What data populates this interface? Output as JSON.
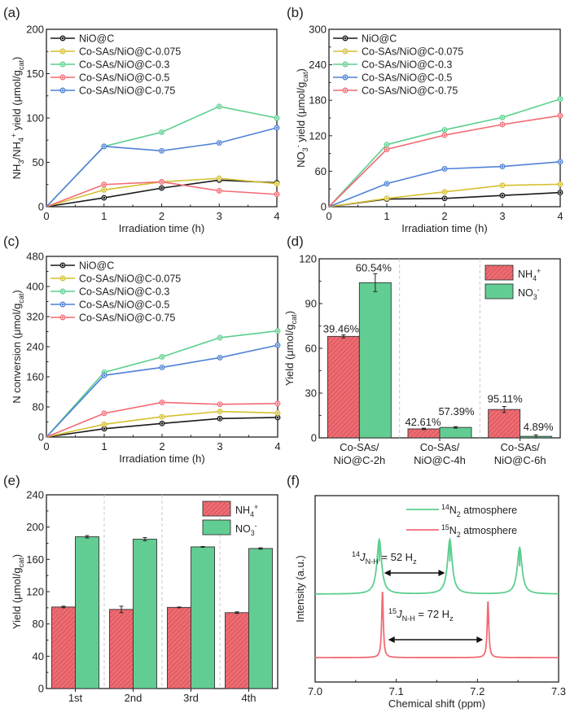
{
  "colors": {
    "black": "#1a1a1a",
    "yellow": "#d4c030",
    "green": "#5ccf8f",
    "red": "#f26b74",
    "blue": "#4f80d6",
    "bar_red": "#ef6b72",
    "bar_green": "#62cd92"
  },
  "chart_data": [
    {
      "id": "a",
      "panel_label": "(a)",
      "type": "line",
      "title": "",
      "xlabel": "Irradiation time (h)",
      "ylabel_parts": [
        "NH",
        "3",
        "/NH",
        "4",
        "+",
        " yield (μmol/g",
        "cat",
        ")"
      ],
      "ylabel": "NH3/NH4+ yield (μmol/gcat)",
      "x": [
        0,
        1,
        2,
        3,
        4
      ],
      "xlim": [
        0,
        4
      ],
      "ylim": [
        0,
        200
      ],
      "xticks": [
        "0",
        "1",
        "2",
        "3",
        "4"
      ],
      "yticks": [
        0,
        50,
        100,
        150,
        200
      ],
      "legend_position": "top-left",
      "series": [
        {
          "name": "NiO@C",
          "color_key": "black",
          "values": [
            0,
            10,
            21,
            30,
            27
          ]
        },
        {
          "name": "Co-SAs/NiO@C-0.075",
          "color_key": "yellow",
          "values": [
            0,
            19,
            28,
            32,
            26
          ]
        },
        {
          "name": "Co-SAs/NiO@C-0.3",
          "color_key": "green",
          "values": [
            0,
            68,
            84,
            113,
            100
          ]
        },
        {
          "name": "Co-SAs/NiO@C-0.5",
          "color_key": "red",
          "values": [
            0,
            25,
            28,
            18,
            14
          ]
        },
        {
          "name": "Co-SAs/NiO@C-0.75",
          "color_key": "blue",
          "values": [
            0,
            68,
            63,
            72,
            89
          ]
        }
      ]
    },
    {
      "id": "b",
      "panel_label": "(b)",
      "type": "line",
      "title": "",
      "xlabel": "Irradiation time (h)",
      "ylabel_parts": [
        "NO",
        "3",
        "-",
        " yield (μmol/g",
        "cat",
        ")"
      ],
      "ylabel": "NO3- yield (μmol/gcat)",
      "x": [
        0,
        1,
        2,
        3,
        4
      ],
      "xlim": [
        0,
        4
      ],
      "ylim": [
        0,
        300
      ],
      "xticks": [
        "0",
        "1",
        "2",
        "3",
        "4"
      ],
      "yticks": [
        0,
        60,
        120,
        180,
        240,
        300
      ],
      "legend_position": "top-left",
      "series": [
        {
          "name": "NiO@C",
          "color_key": "black",
          "values": [
            0,
            13,
            14,
            19,
            24
          ]
        },
        {
          "name": "Co-SAs/NiO@C-0.075",
          "color_key": "yellow",
          "values": [
            0,
            14,
            25,
            36,
            38
          ]
        },
        {
          "name": "Co-SAs/NiO@C-0.3",
          "color_key": "green",
          "values": [
            0,
            105,
            130,
            151,
            182
          ]
        },
        {
          "name": "Co-SAs/NiO@C-0.5",
          "color_key": "blue",
          "values": [
            0,
            39,
            64,
            68,
            76
          ]
        },
        {
          "name": "Co-SAs/NiO@C-0.75",
          "color_key": "red",
          "values": [
            0,
            97,
            121,
            139,
            154
          ]
        }
      ]
    },
    {
      "id": "c",
      "panel_label": "(c)",
      "type": "line",
      "title": "",
      "xlabel": "Irradiation time (h)",
      "ylabel_parts": [
        "N conversion (μmol/g",
        "cat",
        ")"
      ],
      "ylabel": "N conversion (μmol/gcat)",
      "x": [
        0,
        1,
        2,
        3,
        4
      ],
      "xlim": [
        0,
        4
      ],
      "ylim": [
        0,
        480
      ],
      "xticks": [
        "0",
        "1",
        "2",
        "3",
        "4"
      ],
      "yticks": [
        0,
        80,
        160,
        240,
        320,
        400,
        480
      ],
      "legend_position": "top-left",
      "series": [
        {
          "name": "NiO@C",
          "color_key": "black",
          "values": [
            0,
            22,
            36,
            49,
            52
          ]
        },
        {
          "name": "Co-SAs/NiO@C-0.075",
          "color_key": "yellow",
          "values": [
            0,
            34,
            54,
            68,
            64
          ]
        },
        {
          "name": "Co-SAs/NiO@C-0.3",
          "color_key": "green",
          "values": [
            0,
            172,
            213,
            264,
            282
          ]
        },
        {
          "name": "Co-SAs/NiO@C-0.5",
          "color_key": "blue",
          "values": [
            0,
            164,
            185,
            211,
            244
          ]
        },
        {
          "name": "Co-SAs/NiO@C-0.75",
          "color_key": "red",
          "values": [
            0,
            63,
            92,
            87,
            89
          ]
        }
      ]
    },
    {
      "id": "d",
      "panel_label": "(d)",
      "type": "bar",
      "title": "",
      "xlabel": "",
      "ylabel_parts": [
        "Yield (μmol/g",
        "cat",
        ")"
      ],
      "ylabel": "Yield (μmol/gcat)",
      "categories": [
        [
          "Co-SAs/",
          "NiO@C-2h"
        ],
        [
          "Co-SAs/",
          "NiO@C-4h"
        ],
        [
          "Co-SAs/",
          "NiO@C-6h"
        ]
      ],
      "ylim": [
        0,
        120
      ],
      "yticks": [
        0,
        30,
        60,
        90,
        120
      ],
      "legend_position": "top-right",
      "series": [
        {
          "name": "NH4+",
          "name_parts": [
            "NH",
            "4",
            "+"
          ],
          "color_key": "bar_red",
          "hatched": true,
          "values": [
            68,
            6,
            19
          ],
          "errors": [
            1,
            0.5,
            2
          ],
          "labels": [
            "39.46%",
            "42.61%",
            "95.11%"
          ]
        },
        {
          "name": "NO3-",
          "name_parts": [
            "NO",
            "3",
            "-"
          ],
          "color_key": "bar_green",
          "hatched": false,
          "values": [
            104,
            7,
            1
          ],
          "errors": [
            6,
            0.5,
            1
          ],
          "labels": [
            "60.54%",
            "57.39%",
            "4.89%"
          ]
        }
      ]
    },
    {
      "id": "e",
      "panel_label": "(e)",
      "type": "bar",
      "title": "",
      "xlabel": "",
      "ylabel_parts": [
        "Yield (μmol/g",
        "cat",
        ")"
      ],
      "ylabel": "Yield (μmol/gcat)",
      "categories": [
        [
          "1st"
        ],
        [
          "2nd"
        ],
        [
          "3rd"
        ],
        [
          "4th"
        ]
      ],
      "ylim": [
        0,
        240
      ],
      "yticks": [
        0,
        40,
        80,
        120,
        160,
        200,
        240
      ],
      "legend_position": "top-right",
      "series": [
        {
          "name": "NH4+",
          "name_parts": [
            "NH",
            "4",
            "+"
          ],
          "color_key": "bar_red",
          "hatched": true,
          "values": [
            101,
            98,
            100.5,
            94
          ],
          "errors": [
            1,
            4,
            0.5,
            1
          ],
          "labels": []
        },
        {
          "name": "NO3-",
          "name_parts": [
            "NO",
            "3",
            "-"
          ],
          "color_key": "bar_green",
          "hatched": false,
          "values": [
            188,
            185,
            175.5,
            173.5
          ],
          "errors": [
            1.5,
            2,
            0.5,
            0.8
          ],
          "labels": []
        }
      ]
    },
    {
      "id": "f",
      "panel_label": "(f)",
      "type": "line",
      "title": "",
      "xlabel": "Chemical shift (ppm)",
      "ylabel": "Intensity (a.u.)",
      "ylabel_parts": [
        "Intensity (a.u.)"
      ],
      "xlim": [
        7.0,
        7.3
      ],
      "xticks": [
        "7.0",
        "7.1",
        "7.2",
        "7.3"
      ],
      "xtick_values": [
        7.0,
        7.1,
        7.2,
        7.3
      ],
      "legend_position": "top-right",
      "series": [
        {
          "name": "14N2 atmosphere",
          "name_parts": [
            "14",
            "N",
            "2",
            " atmosphere"
          ],
          "color_key": "green",
          "peaks_ppm": [
            7.079,
            7.166,
            7.252
          ],
          "peak_heights": [
            0.47,
            0.47,
            0.4
          ],
          "peak_width_ppm": 0.0035,
          "baseline": 0.47
        },
        {
          "name": "15N2 atmosphere",
          "name_parts": [
            "15",
            "N",
            "2",
            " atmosphere"
          ],
          "color_key": "red",
          "peaks_ppm": [
            7.083,
            7.213
          ],
          "peak_heights": [
            0.55,
            0.47
          ],
          "peak_width_ppm": 0.0012,
          "baseline": 0.0
        }
      ],
      "annotations": [
        {
          "id": "j14",
          "parts": [
            "14",
            "J",
            "N-H",
            " = 52 H",
            "z"
          ],
          "text": "14J N-H = 52 Hz",
          "arrow_ppm": [
            7.085,
            7.16
          ]
        },
        {
          "id": "j15",
          "parts": [
            "15",
            "J",
            "N-H",
            " = 72 H",
            "z"
          ],
          "text": "15J N-H = 72 Hz",
          "arrow_ppm": [
            7.09,
            7.207
          ]
        }
      ]
    }
  ]
}
